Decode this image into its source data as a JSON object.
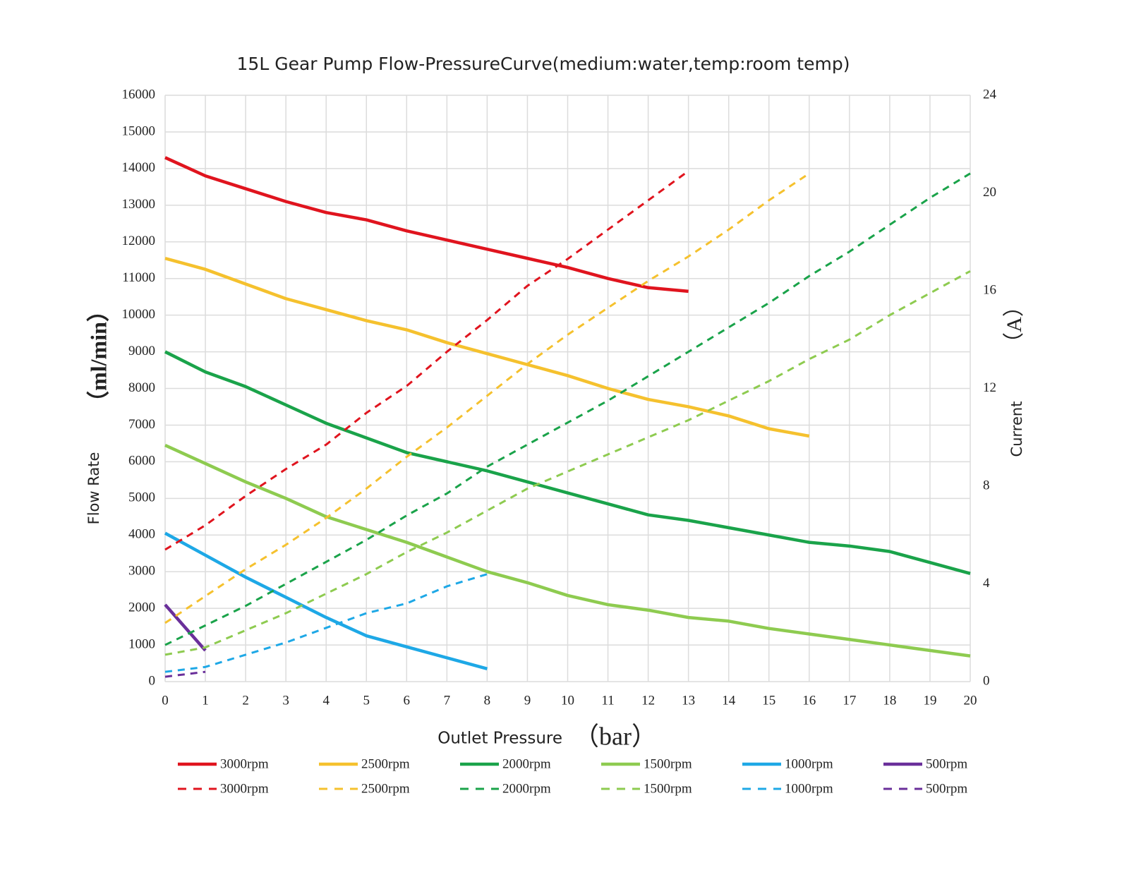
{
  "chart_data": {
    "type": "line",
    "title": "15L Gear Pump Flow-PressureCurve(medium:water,temp:room temp)",
    "ylabel": "Flow Rate",
    "yunit": "（ml/min）",
    "y2label": "Current",
    "y2unit": "（A）",
    "xlabel": "Outlet Pressure",
    "xunit": "（bar）",
    "x": [
      0,
      1,
      2,
      3,
      4,
      5,
      6,
      7,
      8,
      9,
      10,
      11,
      12,
      13,
      14,
      15,
      16,
      17,
      18,
      19,
      20
    ],
    "xlim": [
      0,
      20
    ],
    "xticks": [
      0,
      1,
      2,
      3,
      4,
      5,
      6,
      7,
      8,
      9,
      10,
      11,
      12,
      13,
      14,
      15,
      16,
      17,
      18,
      19,
      20
    ],
    "ylim": [
      0,
      16000
    ],
    "yticks": [
      0,
      1000,
      2000,
      3000,
      4000,
      5000,
      6000,
      7000,
      8000,
      9000,
      10000,
      11000,
      12000,
      13000,
      14000,
      15000,
      16000
    ],
    "y2lim": [
      0,
      24
    ],
    "y2ticks": [
      0,
      4,
      8,
      12,
      16,
      20,
      24
    ],
    "grid": true,
    "series": [
      {
        "name": "3000rpm",
        "color": "#e0141e",
        "dashed": false,
        "values": [
          14300,
          13800,
          13450,
          13100,
          12800,
          12600,
          12300,
          12050,
          11800,
          11550,
          11300,
          11000,
          10750,
          10650,
          null,
          null,
          null,
          null,
          null,
          null,
          null
        ]
      },
      {
        "name": "2500rpm",
        "color": "#f5c12e",
        "dashed": false,
        "values": [
          11550,
          11250,
          10850,
          10450,
          10150,
          9850,
          9600,
          9250,
          8950,
          8650,
          8350,
          8000,
          7700,
          7500,
          7250,
          6900,
          6700,
          null,
          null,
          null,
          null
        ]
      },
      {
        "name": "2000rpm",
        "color": "#1aa34a",
        "dashed": false,
        "values": [
          9000,
          8450,
          8050,
          7550,
          7050,
          6650,
          6250,
          6000,
          5750,
          5450,
          5150,
          4850,
          4550,
          4400,
          4200,
          4000,
          3800,
          3700,
          3550,
          3250,
          2950
        ]
      },
      {
        "name": "1500rpm",
        "color": "#8ecb50",
        "dashed": false,
        "values": [
          6450,
          5950,
          5450,
          5000,
          4500,
          4150,
          3800,
          3400,
          3000,
          2700,
          2350,
          2100,
          1950,
          1750,
          1650,
          1450,
          1300,
          1150,
          1000,
          850,
          700
        ]
      },
      {
        "name": "1000rpm",
        "color": "#1ea8e6",
        "dashed": false,
        "values": [
          4050,
          3450,
          2850,
          2300,
          1750,
          1250,
          950,
          650,
          350,
          null,
          null,
          null,
          null,
          null,
          null,
          null,
          null,
          null,
          null,
          null,
          null
        ]
      },
      {
        "name": "500rpm",
        "color": "#6a2f9a",
        "dashed": false,
        "values": [
          2100,
          850,
          null,
          null,
          null,
          null,
          null,
          null,
          null,
          null,
          null,
          null,
          null,
          null,
          null,
          null,
          null,
          null,
          null,
          null,
          null
        ]
      },
      {
        "name": "3000rpm",
        "color": "#e0141e",
        "dashed": true,
        "axis": "y2",
        "values": [
          5.4,
          6.4,
          7.6,
          8.7,
          9.7,
          11.0,
          12.1,
          13.5,
          14.8,
          16.2,
          17.3,
          18.5,
          19.7,
          20.9,
          null,
          null,
          null,
          null,
          null,
          null,
          null
        ]
      },
      {
        "name": "2500rpm",
        "color": "#f5c12e",
        "dashed": true,
        "axis": "y2",
        "values": [
          2.4,
          3.5,
          4.6,
          5.6,
          6.7,
          7.9,
          9.2,
          10.4,
          11.7,
          13.0,
          14.2,
          15.3,
          16.4,
          17.4,
          18.5,
          19.7,
          20.8,
          null,
          null,
          null,
          null
        ]
      },
      {
        "name": "2000rpm",
        "color": "#1aa34a",
        "dashed": true,
        "axis": "y2",
        "values": [
          1.5,
          2.3,
          3.1,
          4.0,
          4.9,
          5.8,
          6.8,
          7.7,
          8.8,
          9.7,
          10.6,
          11.5,
          12.5,
          13.5,
          14.5,
          15.5,
          16.6,
          17.6,
          18.7,
          19.8,
          20.8
        ]
      },
      {
        "name": "1500rpm",
        "color": "#8ecb50",
        "dashed": true,
        "axis": "y2",
        "values": [
          1.1,
          1.4,
          2.1,
          2.8,
          3.6,
          4.4,
          5.3,
          6.1,
          7.0,
          7.9,
          8.6,
          9.3,
          10.0,
          10.7,
          11.5,
          12.3,
          13.2,
          14.0,
          15.0,
          15.9,
          16.8
        ]
      },
      {
        "name": "1000rpm",
        "color": "#1ea8e6",
        "dashed": true,
        "axis": "y2",
        "values": [
          0.4,
          0.6,
          1.1,
          1.6,
          2.2,
          2.8,
          3.2,
          3.9,
          4.4,
          null,
          null,
          null,
          null,
          null,
          null,
          null,
          null,
          null,
          null,
          null,
          null
        ]
      },
      {
        "name": "500rpm",
        "color": "#6a2f9a",
        "dashed": true,
        "axis": "y2",
        "values": [
          0.2,
          0.4,
          null,
          null,
          null,
          null,
          null,
          null,
          null,
          null,
          null,
          null,
          null,
          null,
          null,
          null,
          null,
          null,
          null,
          null,
          null
        ]
      }
    ]
  }
}
